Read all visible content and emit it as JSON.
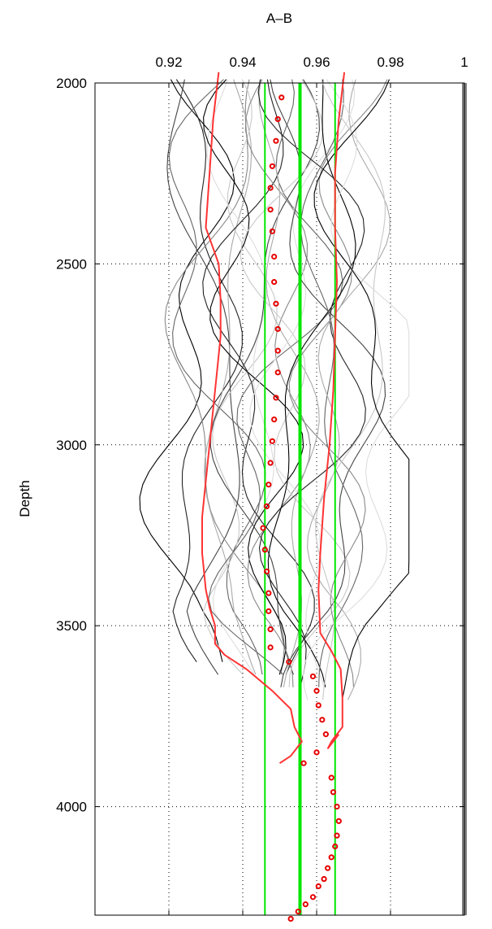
{
  "chart_data": {
    "type": "line",
    "title": "",
    "xlabel": "A–B",
    "ylabel": "Depth",
    "x_axis_position": "top",
    "y_axis_reversed": true,
    "xlim": [
      0.9,
      1.0
    ],
    "ylim": [
      2000,
      4300
    ],
    "xticks": [
      0.92,
      0.94,
      0.96,
      0.98,
      1
    ],
    "xtick_labels": [
      "0.92",
      "0.94",
      "0.96",
      "0.98",
      "1"
    ],
    "yticks": [
      2000,
      2500,
      3000,
      3500,
      4000
    ],
    "ytick_labels": [
      "2000",
      "2500",
      "3000",
      "3500",
      "4000"
    ],
    "grid": true,
    "legend": "none",
    "colors": {
      "reference_line": "#808080",
      "green_lines": "#00e600",
      "red_lines": "#ff3333",
      "red_markers": "#e60000",
      "grey_black": "#000000",
      "grey_mid": "#555555",
      "grey_light": "#999999",
      "grey_pale": "#cccccc"
    },
    "series": [
      {
        "kind": "vertical_line",
        "color": "#808080",
        "x": 1.0,
        "width": "thick"
      },
      {
        "kind": "vertical_line",
        "color": "#00e600",
        "x": 0.946
      },
      {
        "kind": "vertical_line",
        "color": "#00e600",
        "x": 0.9555,
        "width": "thick"
      },
      {
        "kind": "vertical_line",
        "color": "#00e600",
        "x": 0.965
      },
      {
        "kind": "line",
        "color": "#ff3333",
        "points": [
          [
            0.9335,
            1970
          ],
          [
            0.932,
            2100
          ],
          [
            0.931,
            2250
          ],
          [
            0.93,
            2400
          ],
          [
            0.9335,
            2500
          ],
          [
            0.934,
            2600
          ],
          [
            0.934,
            2700
          ],
          [
            0.933,
            2800
          ],
          [
            0.932,
            2900
          ],
          [
            0.931,
            3000
          ],
          [
            0.93,
            3100
          ],
          [
            0.929,
            3200
          ],
          [
            0.929,
            3300
          ],
          [
            0.93,
            3400
          ],
          [
            0.931,
            3450
          ],
          [
            0.9325,
            3500
          ],
          [
            0.9325,
            3550
          ],
          [
            0.935,
            3580
          ],
          [
            0.941,
            3620
          ],
          [
            0.948,
            3680
          ],
          [
            0.953,
            3730
          ],
          [
            0.954,
            3780
          ],
          [
            0.956,
            3820
          ],
          [
            0.953,
            3860
          ],
          [
            0.95,
            3880
          ]
        ]
      },
      {
        "kind": "line",
        "color": "#ff3333",
        "points": [
          [
            0.9675,
            1970
          ],
          [
            0.966,
            2100
          ],
          [
            0.965,
            2250
          ],
          [
            0.965,
            2400
          ],
          [
            0.9655,
            2550
          ],
          [
            0.965,
            2700
          ],
          [
            0.9645,
            2850
          ],
          [
            0.9635,
            3000
          ],
          [
            0.962,
            3150
          ],
          [
            0.961,
            3300
          ],
          [
            0.9605,
            3400
          ],
          [
            0.961,
            3520
          ],
          [
            0.964,
            3570
          ],
          [
            0.9665,
            3620
          ],
          [
            0.967,
            3700
          ],
          [
            0.967,
            3780
          ],
          [
            0.964,
            3820
          ],
          [
            0.963,
            3840
          ],
          [
            0.966,
            3800
          ]
        ]
      },
      {
        "kind": "markers",
        "color": "#e60000",
        "points": [
          [
            0.9505,
            2040
          ],
          [
            0.9495,
            2100
          ],
          [
            0.949,
            2160
          ],
          [
            0.948,
            2230
          ],
          [
            0.9475,
            2290
          ],
          [
            0.9475,
            2350
          ],
          [
            0.948,
            2410
          ],
          [
            0.9485,
            2480
          ],
          [
            0.9485,
            2550
          ],
          [
            0.949,
            2610
          ],
          [
            0.9495,
            2680
          ],
          [
            0.9495,
            2740
          ],
          [
            0.9495,
            2800
          ],
          [
            0.949,
            2870
          ],
          [
            0.9485,
            2930
          ],
          [
            0.948,
            2990
          ],
          [
            0.9475,
            3050
          ],
          [
            0.947,
            3110
          ],
          [
            0.9465,
            3170
          ],
          [
            0.9455,
            3230
          ],
          [
            0.946,
            3290
          ],
          [
            0.9465,
            3350
          ],
          [
            0.947,
            3410
          ],
          [
            0.947,
            3460
          ],
          [
            0.9475,
            3510
          ],
          [
            0.9475,
            3560
          ],
          [
            0.9525,
            3600
          ],
          [
            0.959,
            3640
          ],
          [
            0.96,
            3680
          ],
          [
            0.9605,
            3720
          ],
          [
            0.9615,
            3760
          ],
          [
            0.9625,
            3800
          ],
          [
            0.96,
            3850
          ],
          [
            0.9565,
            3880
          ],
          [
            0.964,
            3920
          ],
          [
            0.9645,
            3960
          ],
          [
            0.9655,
            4000
          ],
          [
            0.966,
            4040
          ],
          [
            0.9655,
            4080
          ],
          [
            0.965,
            4110
          ],
          [
            0.964,
            4140
          ],
          [
            0.963,
            4170
          ],
          [
            0.962,
            4200
          ],
          [
            0.9605,
            4220
          ],
          [
            0.959,
            4250
          ],
          [
            0.957,
            4270
          ],
          [
            0.955,
            4290
          ],
          [
            0.953,
            4310
          ]
        ]
      }
    ]
  }
}
